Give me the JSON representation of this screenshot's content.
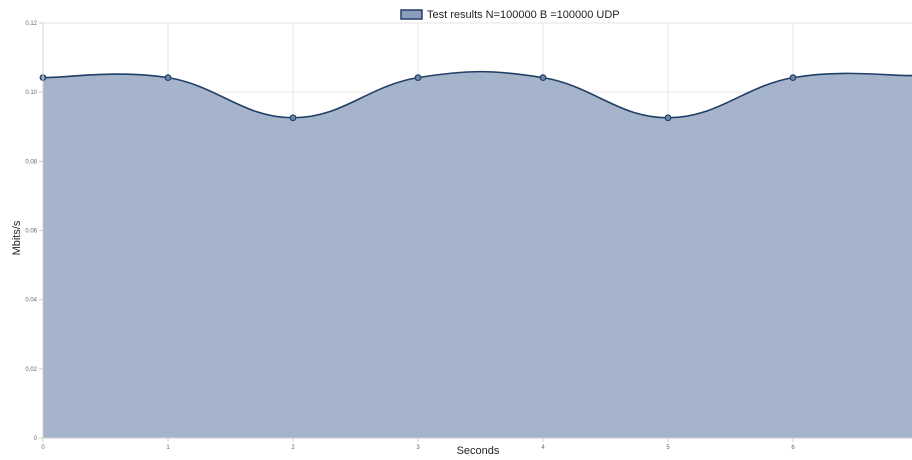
{
  "chart_data": {
    "type": "area",
    "title": "",
    "xlabel": "Seconds",
    "ylabel": "Mbits/s",
    "x_ticks": [
      "0",
      "1",
      "2",
      "3",
      "4",
      "5",
      "6"
    ],
    "y_ticks": [
      "0",
      "0.02",
      "0.04",
      "0.06",
      "0.08",
      "0.10",
      "0.12"
    ],
    "xlim": [
      0,
      7
    ],
    "ylim": [
      0,
      0.12
    ],
    "grid": true,
    "legend_position": "top-center",
    "series": [
      {
        "name": "Test results N=100000 B =100000 UDP",
        "x": [
          0,
          1,
          2,
          3,
          4,
          5,
          6
        ],
        "values": [
          0.1042,
          0.1042,
          0.0926,
          0.1042,
          0.1042,
          0.0926,
          0.1042
        ],
        "line_color": "#1f3f66",
        "fill_color": "#a5b3cb",
        "legend_fill": "#8a9dbd"
      }
    ]
  }
}
